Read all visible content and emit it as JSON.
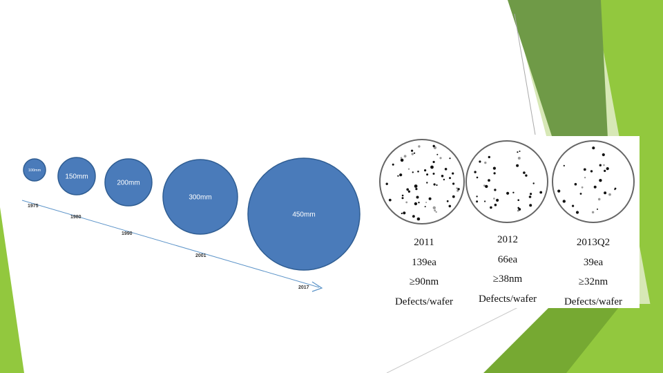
{
  "theme": {
    "green_light": "#92c83e",
    "green_mid": "#76a932",
    "green_dark": "#5b8a3a",
    "green_pale": "#d7e8b6",
    "wafer_fill": "#4a7bba",
    "wafer_stroke": "#2f5d92",
    "arrow": "#5b93c8"
  },
  "wafer_sizes": [
    {
      "label": "100mm",
      "year": "1975"
    },
    {
      "label": "150mm",
      "year": "1980"
    },
    {
      "label": "200mm",
      "year": "1990"
    },
    {
      "label": "300mm",
      "year": "2001"
    },
    {
      "label": "450mm",
      "year": "2017"
    }
  ],
  "defect_panels": [
    {
      "year": "2011",
      "count": "139ea",
      "size": "≥90nm",
      "caption": "Defects/wafer"
    },
    {
      "year": "2012",
      "count": "66ea",
      "size": "≥38nm",
      "caption": "Defects/wafer"
    },
    {
      "year": "2013Q2",
      "count": "39ea",
      "size": "≥32nm",
      "caption": "Defects/wafer"
    }
  ]
}
